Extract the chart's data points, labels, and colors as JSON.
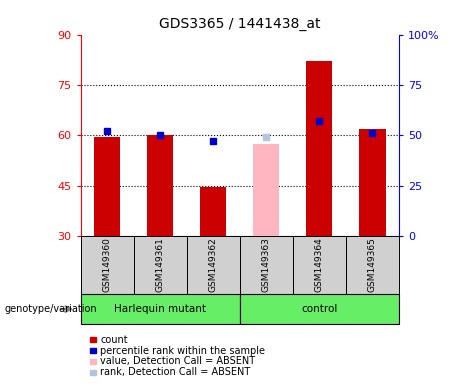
{
  "title": "GDS3365 / 1441438_at",
  "samples": [
    "GSM149360",
    "GSM149361",
    "GSM149362",
    "GSM149363",
    "GSM149364",
    "GSM149365"
  ],
  "ylim_left": [
    30,
    90
  ],
  "ylim_right": [
    0,
    100
  ],
  "yticks_left": [
    30,
    45,
    60,
    75,
    90
  ],
  "yticks_right": [
    0,
    25,
    50,
    75,
    100
  ],
  "count_values": [
    59.5,
    60.2,
    44.5,
    null,
    82.0,
    62.0
  ],
  "rank_values_pct": [
    52.0,
    50.0,
    null,
    null,
    57.0,
    51.0
  ],
  "absent_value": [
    null,
    null,
    null,
    57.5,
    null,
    null
  ],
  "absent_rank_pct": [
    null,
    null,
    null,
    49.0,
    null,
    null
  ],
  "absent_dot_rank_pct": [
    null,
    null,
    47.0,
    null,
    null,
    null
  ],
  "bar_bottom": 30,
  "count_color": "#cc0000",
  "rank_color": "#0000cc",
  "absent_value_color": "#ffb6c1",
  "absent_rank_color": "#b0c4de",
  "bg_gray": "#d0d0d0",
  "bg_green": "#66ee66",
  "hline_values": [
    45,
    60,
    75
  ],
  "legend_items": [
    {
      "color": "#cc0000",
      "label": "count"
    },
    {
      "color": "#0000cc",
      "label": "percentile rank within the sample"
    },
    {
      "color": "#ffb6c1",
      "label": "value, Detection Call = ABSENT"
    },
    {
      "color": "#b0c4de",
      "label": "rank, Detection Call = ABSENT"
    }
  ]
}
